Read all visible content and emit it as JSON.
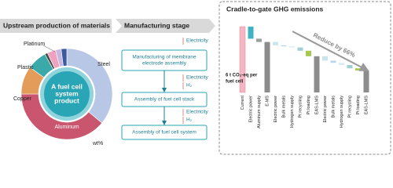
{
  "left": {
    "header": "Upstream production of materials",
    "donut": {
      "center_label": [
        "A fuel cell",
        "system",
        "product"
      ],
      "unit_label": "wt%",
      "segments": [
        {
          "label": "Steel",
          "value": 36,
          "color": "#b9c7e6"
        },
        {
          "label": "Aluminum",
          "value": 39,
          "color": "#c9566e"
        },
        {
          "label": "Copper",
          "value": 10,
          "color": "#e39c5a"
        },
        {
          "label": "Plastic",
          "value": 7,
          "color": "#3aa9a9"
        },
        {
          "label": "Platinum",
          "value": 1,
          "color": "#4a4a4a"
        },
        {
          "label": null,
          "value": 3,
          "color": "#f0a3c0"
        },
        {
          "label": null,
          "value": 2,
          "color": "#c7b6e0"
        },
        {
          "label": null,
          "value": 2,
          "color": "#3b5aa0"
        }
      ]
    }
  },
  "middle": {
    "header": "Manufacturing stage",
    "steps": [
      {
        "label": [
          "Manufacturing of membrane",
          "electrode assembly"
        ],
        "inputs": [
          "Electricity"
        ]
      },
      {
        "label": [
          "Assembly of fuel cell stack"
        ],
        "inputs": [
          "Electricity",
          "H₂"
        ]
      },
      {
        "label": [
          "Assembly of fuel cell system"
        ],
        "inputs": [
          "Electricity",
          "H₂"
        ]
      }
    ]
  },
  "right": {
    "title": "Cradle-to-gate GHG emissions",
    "annotation": [
      "6 t CO₂-eq per",
      "fuel cell"
    ],
    "reduction_label": "Reduce by 66%",
    "waterfall": {
      "bars": [
        {
          "label": "Current",
          "value": 6.0,
          "total": true,
          "color": "#f4b6c2"
        },
        {
          "label": "Electric power",
          "value": -1.1,
          "total": false,
          "color": "#3fb3c4"
        },
        {
          "label": "Aluminum supply",
          "value": -0.3,
          "total": false,
          "color": "#9e9e9e"
        },
        {
          "label": "E-MS",
          "value": 4.6,
          "total": true,
          "color": "#8c8c8c"
        },
        {
          "label": "Electric power",
          "value": -0.3,
          "total": false,
          "color": "#c8e6ec"
        },
        {
          "label": "Bulk metals",
          "value": -0.1,
          "total": false,
          "color": "#bcd7e8"
        },
        {
          "label": "Hydrogen supply",
          "value": -0.1,
          "total": false,
          "color": "#d9ecf3"
        },
        {
          "label": "Pt recycling",
          "value": -0.3,
          "total": false,
          "color": "#9fd0d6"
        },
        {
          "label": "Pt loading",
          "value": -0.5,
          "total": false,
          "color": "#a8c94f"
        },
        {
          "label": "EAS-LMS",
          "value": 3.3,
          "total": true,
          "color": "#8c8c8c"
        },
        {
          "label": "Electric power",
          "value": -0.4,
          "total": false,
          "color": "#c8e6ec"
        },
        {
          "label": "Bulk metals",
          "value": -0.2,
          "total": false,
          "color": "#bcd7e8"
        },
        {
          "label": "Hydrogen supply",
          "value": -0.2,
          "total": false,
          "color": "#d9ecf3"
        },
        {
          "label": "Pt recycling",
          "value": -0.3,
          "total": false,
          "color": "#9fd0d6"
        },
        {
          "label": "Pt loading",
          "value": -0.2,
          "total": false,
          "color": "#a8c94f"
        },
        {
          "label": "EAS-LMS",
          "value": 2.0,
          "total": true,
          "color": "#8c8c8c"
        }
      ]
    }
  }
}
